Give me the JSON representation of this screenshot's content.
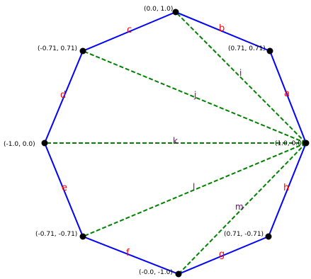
{
  "vertices": [
    {
      "id": "v0",
      "label": "(1.0, 0.0)"
    },
    {
      "id": "v1",
      "label": "(0.71, 0.71)"
    },
    {
      "id": "v2",
      "label": "(0.0, 1.0)"
    },
    {
      "id": "v3",
      "label": "(-0.71, 0.71)"
    },
    {
      "id": "v4",
      "label": "(-1.0, 0.0)"
    },
    {
      "id": "v5",
      "label": "(-0.71, -0.71)"
    },
    {
      "id": "v6",
      "label": "(-0.0, -1.0)"
    },
    {
      "id": "v7",
      "label": "(0.71, -0.71)"
    }
  ],
  "edges": [
    {
      "label": "a",
      "from": "v0",
      "to": "v1"
    },
    {
      "label": "b",
      "from": "v1",
      "to": "v2"
    },
    {
      "label": "c",
      "from": "v2",
      "to": "v3"
    },
    {
      "label": "d",
      "from": "v3",
      "to": "v4"
    },
    {
      "label": "e",
      "from": "v4",
      "to": "v5"
    },
    {
      "label": "f",
      "from": "v5",
      "to": "v6"
    },
    {
      "label": "g",
      "from": "v6",
      "to": "v7"
    },
    {
      "label": "h",
      "from": "v7",
      "to": "v0"
    }
  ],
  "diagonals": [
    {
      "label": "i",
      "from": "v0",
      "to": "v2"
    },
    {
      "label": "j",
      "from": "v0",
      "to": "v3"
    },
    {
      "label": "k",
      "from": "v0",
      "to": "v4"
    },
    {
      "label": "l",
      "from": "v0",
      "to": "v5"
    },
    {
      "label": "m",
      "from": "v0",
      "to": "v6"
    }
  ],
  "colors": {
    "edge": "#0000ff",
    "diagonal": "#008000",
    "edge_label": "#ff0000",
    "diagonal_label": "#800080",
    "vertex": "#000000"
  }
}
